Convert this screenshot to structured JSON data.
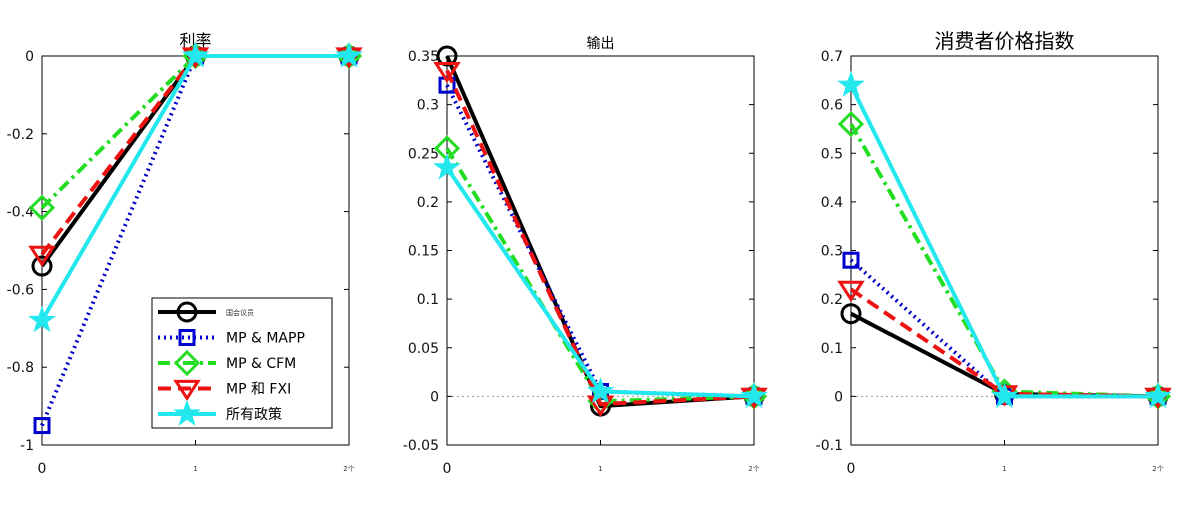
{
  "chart_data": [
    {
      "type": "line",
      "title": "利率",
      "x": [
        0,
        1,
        2
      ],
      "xticklabels": [
        "0",
        "1",
        "2个"
      ],
      "ylim": [
        -1,
        0
      ],
      "yticks": [
        "0",
        "-0.2",
        "-0.4",
        "-0.6",
        "-0.8",
        "-1"
      ],
      "series": [
        {
          "name": "国会议员",
          "values": [
            -0.54,
            0,
            0
          ]
        },
        {
          "name": "MP & MAPP",
          "values": [
            -0.95,
            0,
            0
          ]
        },
        {
          "name": "MP & CFM",
          "values": [
            -0.39,
            0,
            0
          ]
        },
        {
          "name": "MP 和 FXI",
          "values": [
            -0.51,
            0,
            0
          ]
        },
        {
          "name": "所有政策",
          "values": [
            -0.68,
            0,
            0
          ]
        }
      ],
      "legend": "bottom-right"
    },
    {
      "type": "line",
      "title": "输出",
      "x": [
        0,
        1,
        2
      ],
      "xticklabels": [
        "0",
        "1",
        "2个"
      ],
      "ylim": [
        -0.05,
        0.35
      ],
      "yticks": [
        "0.35",
        "0.3",
        "0.25",
        "0.2",
        "0.15",
        "0.1",
        "0.05",
        "0",
        "-0.05"
      ],
      "series": [
        {
          "name": "国会议员",
          "values": [
            0.35,
            -0.01,
            0
          ]
        },
        {
          "name": "MP & MAPP",
          "values": [
            0.32,
            0.005,
            0
          ]
        },
        {
          "name": "MP & CFM",
          "values": [
            0.255,
            -0.005,
            0
          ]
        },
        {
          "name": "MP 和 FXI",
          "values": [
            0.335,
            -0.008,
            0
          ]
        },
        {
          "name": "所有政策",
          "values": [
            0.235,
            0.005,
            0
          ]
        }
      ]
    },
    {
      "type": "line",
      "title": "消费者价格指数",
      "x": [
        0,
        1,
        2
      ],
      "xticklabels": [
        "0",
        "1",
        "2个"
      ],
      "ylim": [
        -0.1,
        0.7
      ],
      "yticks": [
        "0.7",
        "0.6",
        "0.5",
        "0.4",
        "0.3",
        "0.2",
        "0.1",
        "0",
        "-0.1"
      ],
      "series": [
        {
          "name": "国会议员",
          "values": [
            0.17,
            0.005,
            0
          ]
        },
        {
          "name": "MP & MAPP",
          "values": [
            0.28,
            0,
            0
          ]
        },
        {
          "name": "MP & CFM",
          "values": [
            0.56,
            0.01,
            0
          ]
        },
        {
          "name": "MP 和 FXI",
          "values": [
            0.22,
            0.005,
            0
          ]
        },
        {
          "name": "所有政策",
          "values": [
            0.64,
            0,
            0
          ]
        }
      ]
    }
  ],
  "styles": {
    "国会议员": {
      "color": "#000000",
      "dash": "",
      "marker": "circle"
    },
    "MP & MAPP": {
      "color": "#0000cc",
      "dash": "dot",
      "marker": "square"
    },
    "MP & CFM": {
      "color": "#22dd22",
      "dash": "dashdot",
      "marker": "diamond"
    },
    "MP 和 FXI": {
      "color": "#ee1111",
      "dash": "dash",
      "marker": "triangle"
    },
    "所有政策": {
      "color": "#22e8ee",
      "dash": "",
      "marker": "star"
    }
  }
}
